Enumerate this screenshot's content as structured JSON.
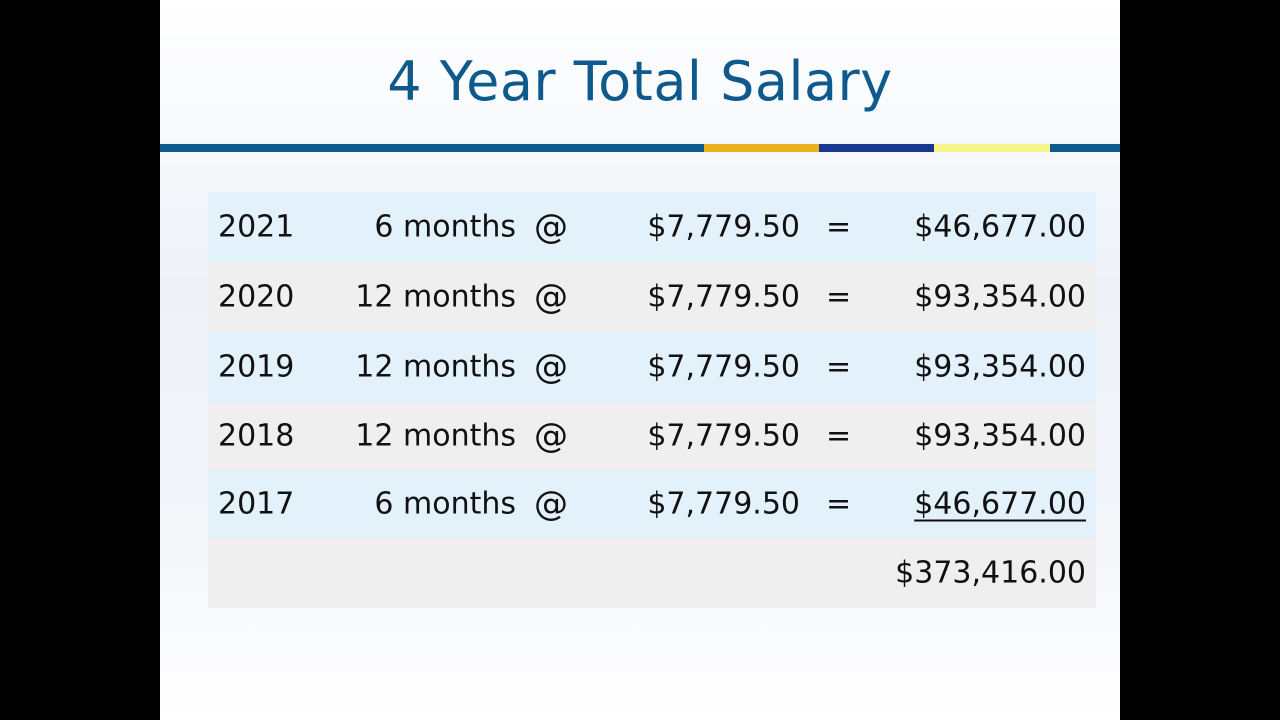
{
  "slide": {
    "title": "4 Year Total Salary"
  },
  "accent_colors": {
    "title": "#0f5a8c",
    "rule_blue": "#0f5a8c",
    "rule_gold": "#e8b21c",
    "rule_navy": "#16388f",
    "rule_yellow": "#f7f58a"
  },
  "rows": [
    {
      "year": "2021",
      "months": "6 months",
      "at": "@",
      "rate": "$7,779.50",
      "eq": "=",
      "amount": "$46,677.00"
    },
    {
      "year": "2020",
      "months": "12 months",
      "at": "@",
      "rate": "$7,779.50",
      "eq": "=",
      "amount": "$93,354.00"
    },
    {
      "year": "2019",
      "months": "12 months",
      "at": "@",
      "rate": "$7,779.50",
      "eq": "=",
      "amount": "$93,354.00"
    },
    {
      "year": "2018",
      "months": "12 months",
      "at": "@",
      "rate": "$7,779.50",
      "eq": "=",
      "amount": "$93,354.00"
    },
    {
      "year": "2017",
      "months": "6 months",
      "at": "@",
      "rate": "$7,779.50",
      "eq": "=",
      "amount": "$46,677.00"
    }
  ],
  "total": "$373,416.00"
}
